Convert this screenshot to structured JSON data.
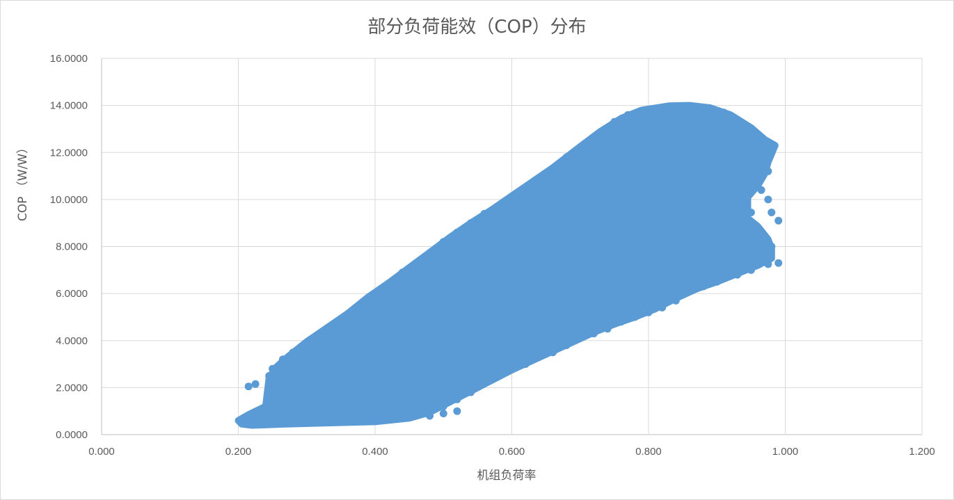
{
  "chart_data": {
    "type": "scatter",
    "title": "部分负荷能效（COP）分布",
    "xlabel": "机组负荷率",
    "ylabel": "COP （W/W）",
    "xlim": [
      0.0,
      1.2
    ],
    "ylim": [
      0.0,
      16.0
    ],
    "x_ticks": [
      0.0,
      0.2,
      0.4,
      0.6,
      0.8,
      1.0,
      1.2
    ],
    "y_ticks": [
      0,
      2,
      4,
      6,
      8,
      10,
      12,
      14,
      16
    ],
    "x_tick_labels": [
      "0.000",
      "0.200",
      "0.400",
      "0.600",
      "0.800",
      "1.000",
      "1.200"
    ],
    "y_tick_labels": [
      "0.0000",
      "2.0000",
      "4.0000",
      "6.0000",
      "8.0000",
      "10.0000",
      "12.0000",
      "14.0000",
      "16.0000"
    ],
    "grid": true,
    "legend": "none",
    "marker_color": "#5b9bd5",
    "series": [
      {
        "points": [
          [
            0.205,
            0.5
          ],
          [
            0.215,
            0.7
          ],
          [
            0.225,
            0.8
          ],
          [
            0.24,
            1.0
          ],
          [
            0.26,
            1.2
          ],
          [
            0.28,
            1.3
          ],
          [
            0.21,
            0.6
          ],
          [
            0.23,
            0.5
          ],
          [
            0.25,
            0.6
          ],
          [
            0.27,
            0.7
          ],
          [
            0.3,
            0.6
          ],
          [
            0.33,
            0.55
          ],
          [
            0.36,
            0.6
          ],
          [
            0.4,
            0.65
          ],
          [
            0.44,
            0.7
          ],
          [
            0.48,
            0.8
          ],
          [
            0.5,
            0.9
          ],
          [
            0.52,
            1.0
          ],
          [
            0.215,
            2.05
          ],
          [
            0.225,
            2.15
          ],
          [
            0.245,
            2.5
          ],
          [
            0.25,
            2.8
          ],
          [
            0.265,
            3.2
          ],
          [
            0.28,
            3.5
          ],
          [
            0.3,
            3.9
          ],
          [
            0.32,
            4.2
          ],
          [
            0.34,
            4.6
          ],
          [
            0.36,
            5.0
          ],
          [
            0.38,
            5.5
          ],
          [
            0.4,
            6.0
          ],
          [
            0.42,
            6.4
          ],
          [
            0.44,
            6.9
          ],
          [
            0.46,
            7.3
          ],
          [
            0.48,
            7.7
          ],
          [
            0.5,
            8.2
          ],
          [
            0.52,
            8.6
          ],
          [
            0.54,
            9.0
          ],
          [
            0.56,
            9.4
          ],
          [
            0.58,
            9.7
          ],
          [
            0.6,
            10.1
          ],
          [
            0.62,
            10.5
          ],
          [
            0.64,
            10.9
          ],
          [
            0.66,
            11.3
          ],
          [
            0.68,
            11.8
          ],
          [
            0.7,
            12.2
          ],
          [
            0.71,
            12.4
          ],
          [
            0.73,
            12.8
          ],
          [
            0.75,
            13.3
          ],
          [
            0.77,
            13.6
          ],
          [
            0.79,
            13.75
          ],
          [
            0.8,
            13.8
          ],
          [
            0.82,
            13.9
          ],
          [
            0.84,
            13.9
          ],
          [
            0.86,
            13.95
          ],
          [
            0.88,
            13.85
          ],
          [
            0.89,
            13.85
          ],
          [
            0.91,
            13.7
          ],
          [
            0.93,
            13.4
          ],
          [
            0.95,
            13.0
          ],
          [
            0.96,
            12.6
          ],
          [
            0.97,
            12.4
          ],
          [
            0.98,
            12.3
          ],
          [
            0.975,
            11.2
          ],
          [
            0.95,
            11.5
          ],
          [
            0.965,
            10.4
          ],
          [
            0.975,
            10.0
          ],
          [
            0.98,
            9.45
          ],
          [
            0.99,
            9.1
          ],
          [
            0.95,
            9.45
          ],
          [
            0.955,
            8.9
          ],
          [
            0.98,
            8.0
          ],
          [
            0.97,
            7.5
          ],
          [
            0.99,
            7.3
          ],
          [
            0.975,
            7.25
          ],
          [
            0.95,
            7.0
          ],
          [
            0.93,
            6.8
          ],
          [
            0.9,
            6.5
          ],
          [
            0.88,
            6.3
          ],
          [
            0.86,
            6.1
          ],
          [
            0.84,
            5.7
          ],
          [
            0.82,
            5.4
          ],
          [
            0.8,
            5.2
          ],
          [
            0.78,
            5.0
          ],
          [
            0.76,
            4.8
          ],
          [
            0.74,
            4.5
          ],
          [
            0.72,
            4.3
          ],
          [
            0.7,
            4.1
          ],
          [
            0.68,
            3.8
          ],
          [
            0.66,
            3.5
          ],
          [
            0.64,
            3.3
          ],
          [
            0.62,
            3.0
          ],
          [
            0.6,
            2.8
          ],
          [
            0.58,
            2.5
          ],
          [
            0.56,
            2.2
          ],
          [
            0.54,
            1.8
          ],
          [
            0.52,
            1.5
          ],
          [
            0.5,
            1.2
          ],
          [
            0.5,
            3.0
          ],
          [
            0.55,
            4.0
          ],
          [
            0.6,
            5.0
          ],
          [
            0.65,
            6.0
          ],
          [
            0.7,
            7.0
          ],
          [
            0.75,
            8.0
          ],
          [
            0.8,
            9.0
          ],
          [
            0.85,
            10.0
          ],
          [
            0.9,
            11.0
          ],
          [
            0.45,
            2.5
          ],
          [
            0.4,
            2.0
          ],
          [
            0.35,
            1.8
          ],
          [
            0.3,
            1.5
          ],
          [
            0.6,
            7.0
          ],
          [
            0.7,
            9.0
          ],
          [
            0.8,
            11.0
          ],
          [
            0.85,
            12.0
          ],
          [
            0.9,
            12.5
          ],
          [
            0.65,
            8.0
          ],
          [
            0.55,
            6.0
          ],
          [
            0.45,
            4.5
          ],
          [
            0.35,
            3.0
          ],
          [
            0.75,
            10.0
          ],
          [
            0.82,
            7.0
          ],
          [
            0.88,
            8.0
          ],
          [
            0.92,
            9.5
          ],
          [
            0.94,
            10.5
          ],
          [
            0.4,
            3.5
          ],
          [
            0.5,
            5.5
          ],
          [
            0.6,
            3.5
          ],
          [
            0.7,
            5.0
          ],
          [
            0.78,
            6.5
          ],
          [
            0.86,
            7.5
          ],
          [
            0.92,
            8.5
          ]
        ]
      }
    ]
  }
}
